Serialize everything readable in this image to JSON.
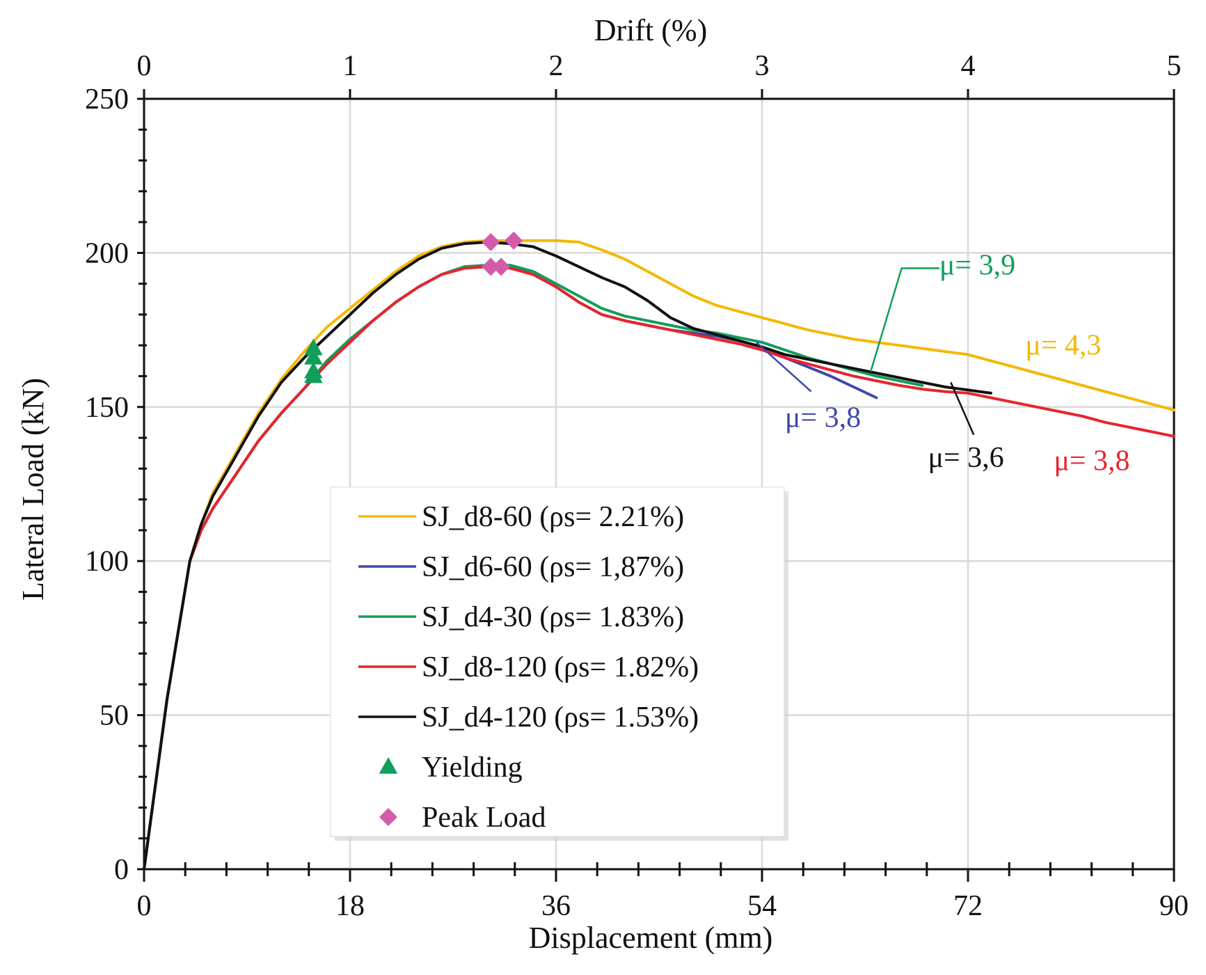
{
  "chart_data": {
    "type": "line",
    "xlabel": "Displacement (mm)",
    "ylabel": "Lateral Load (kN)",
    "x2label": "Drift (%)",
    "xlim": [
      0,
      90
    ],
    "ylim": [
      0,
      250
    ],
    "x2lim": [
      0,
      5
    ],
    "xticks": [
      "0",
      "18",
      "36",
      "54",
      "72",
      "90"
    ],
    "yticks": [
      "0",
      "50",
      "100",
      "150",
      "200",
      "250"
    ],
    "x2ticks": [
      "0",
      "1",
      "2",
      "3",
      "4",
      "5"
    ],
    "grid": true,
    "legend_position": "bottom-left",
    "series": [
      {
        "name": "SJ_d8-60 (ρs= 2.21%)",
        "color": "#F5B800",
        "x": [
          0,
          2,
          4,
          5,
          6,
          8,
          10,
          12,
          14,
          16,
          18,
          20,
          22,
          24,
          26,
          28,
          30,
          32,
          34,
          36,
          38,
          40,
          42,
          44,
          46,
          48,
          50,
          52,
          54,
          56,
          58,
          60,
          62,
          64,
          66,
          68,
          70,
          72,
          74,
          76,
          78,
          80,
          82,
          84,
          86,
          88,
          90
        ],
        "y": [
          0,
          55,
          100,
          112,
          122,
          135,
          148,
          159,
          168,
          176,
          182,
          188,
          194,
          199,
          202,
          203.5,
          204,
          204,
          204,
          204,
          203.5,
          201,
          198,
          194,
          190,
          186,
          183,
          181,
          179,
          177,
          175,
          173.5,
          172,
          171,
          170,
          169,
          168,
          167,
          165,
          163,
          161,
          159,
          157,
          155,
          153,
          151,
          149
        ]
      },
      {
        "name": "SJ_d6-60 (ρs= 1,87%)",
        "color": "#3F48A8",
        "x": [
          0,
          2,
          4,
          5,
          6,
          8,
          10,
          12,
          14,
          16,
          18,
          20,
          22,
          24,
          26,
          28,
          30,
          31,
          32,
          34,
          36,
          38,
          40,
          42,
          44,
          46,
          48,
          50,
          52,
          54,
          56,
          58,
          60,
          62,
          64
        ],
        "y": [
          0,
          55,
          100,
          110,
          117,
          128,
          139,
          148,
          156,
          165,
          172,
          178,
          184,
          189,
          193,
          195.5,
          196,
          196,
          195.5,
          193,
          189,
          184,
          180,
          178,
          176.5,
          175,
          174,
          173,
          171.5,
          169.5,
          166,
          163,
          160,
          156.5,
          153
        ]
      },
      {
        "name": "SJ_d4-30 (ρs= 1.83%)",
        "color": "#109E5B",
        "x": [
          0,
          2,
          4,
          5,
          6,
          8,
          10,
          12,
          14,
          16,
          18,
          20,
          22,
          24,
          26,
          28,
          30,
          31,
          32,
          34,
          36,
          38,
          40,
          42,
          44,
          46,
          48,
          50,
          52,
          54,
          56,
          58,
          60,
          62,
          64,
          66,
          68
        ],
        "y": [
          0,
          55,
          100,
          110,
          117,
          128,
          139,
          148,
          156,
          165,
          172,
          178,
          184,
          189,
          193,
          195.5,
          196,
          196,
          196,
          194,
          190,
          186,
          182,
          179.5,
          178,
          176.5,
          175,
          174,
          172.5,
          171,
          168.5,
          166,
          164,
          162,
          160,
          158.5,
          157
        ]
      },
      {
        "name": "SJ_d8-120 (ρs= 1.82%)",
        "color": "#E8242C",
        "x": [
          0,
          2,
          4,
          5,
          6,
          8,
          10,
          12,
          14,
          16,
          18,
          20,
          22,
          24,
          26,
          28,
          30,
          31,
          32,
          34,
          36,
          38,
          40,
          42,
          44,
          46,
          48,
          50,
          52,
          54,
          56,
          58,
          60,
          62,
          64,
          66,
          68,
          70,
          72,
          74,
          76,
          78,
          80,
          82,
          84,
          86,
          88,
          90
        ],
        "y": [
          0,
          55,
          100,
          110,
          117,
          128,
          139,
          148,
          156,
          164,
          171,
          178,
          184,
          189,
          193,
          195,
          195.5,
          195.5,
          195,
          193,
          189,
          184,
          180,
          178,
          176.5,
          175,
          173.5,
          172,
          170.5,
          168.5,
          166,
          164,
          162,
          160,
          158.5,
          157,
          155.8,
          155,
          154.5,
          153,
          151.5,
          150,
          148.5,
          147,
          145,
          143.5,
          142,
          140.5
        ]
      },
      {
        "name": "SJ_d4-120 (ρs= 1.53%)",
        "color": "#111111",
        "x": [
          0,
          2,
          4,
          5,
          6,
          8,
          10,
          12,
          14,
          16,
          18,
          20,
          22,
          24,
          26,
          28,
          30,
          32,
          34,
          36,
          38,
          40,
          42,
          44,
          46,
          48,
          50,
          52,
          54,
          56,
          58,
          60,
          62,
          64,
          66,
          68,
          70,
          72,
          74
        ],
        "y": [
          0,
          55,
          100,
          112,
          121,
          134,
          147,
          158,
          166,
          173,
          180,
          187,
          193,
          198,
          201.5,
          203,
          203.5,
          203,
          202,
          199,
          195.5,
          192,
          189,
          184.5,
          179,
          175.5,
          173.5,
          171.5,
          169.5,
          167,
          165.5,
          164,
          162.5,
          161,
          159.5,
          158,
          156.5,
          155.5,
          154.5
        ]
      }
    ],
    "markers": [
      {
        "name": "Yielding",
        "shape": "triangle",
        "color": "#109E5B",
        "points": [
          [
            14.8,
            169
          ],
          [
            14.8,
            166
          ],
          [
            14.8,
            161.5
          ],
          [
            14.8,
            160
          ]
        ]
      },
      {
        "name": "Peak Load",
        "shape": "diamond",
        "color": "#D45BAA",
        "points": [
          [
            30.3,
            203.5
          ],
          [
            32.3,
            204
          ],
          [
            30.3,
            195.5
          ],
          [
            31.2,
            195.5
          ]
        ]
      }
    ],
    "annotations": [
      {
        "text": "μ= 3,9",
        "color": "#109E5B",
        "x": 69.5,
        "y": 193,
        "pointer": [
          [
            69.5,
            195
          ],
          [
            66.2,
            195
          ],
          [
            63.5,
            161.5
          ]
        ]
      },
      {
        "text": "μ= 4,3",
        "color": "#F5B800",
        "x": 77,
        "y": 167,
        "pointer": []
      },
      {
        "text": "μ= 3,8",
        "color": "#3F48A8",
        "x": 56,
        "y": 143.5,
        "pointer": [
          [
            53.5,
            171
          ],
          [
            58.3,
            155
          ]
        ]
      },
      {
        "text": "μ= 3,6",
        "color": "#111111",
        "x": 68.5,
        "y": 130.5,
        "pointer": [
          [
            70.5,
            158
          ],
          [
            72.5,
            141
          ]
        ]
      },
      {
        "text": "μ= 3,8",
        "color": "#E8242C",
        "x": 79.5,
        "y": 129.5,
        "pointer": []
      }
    ]
  }
}
